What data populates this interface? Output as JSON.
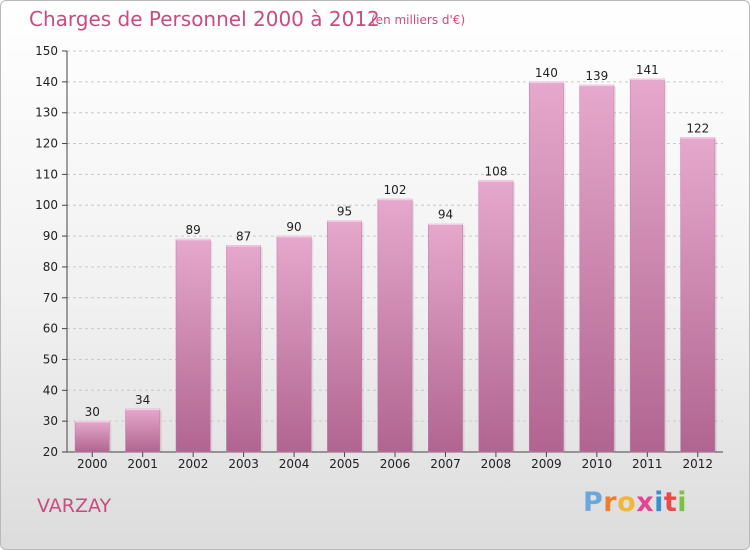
{
  "header": {
    "title": "Charges de Personnel 2000 à 2012",
    "subtitle": "(en milliers d'€)"
  },
  "footer": {
    "town": "VARZAY",
    "logo_letters": [
      "P",
      "r",
      "o",
      "x",
      "i",
      "t",
      "i"
    ],
    "logo_colors": [
      "#6aa8dc",
      "#ef7d2c",
      "#f0b73c",
      "#e84393",
      "#3a8fd0",
      "#e94a4a",
      "#7cc242"
    ]
  },
  "colors": {
    "bar": "#cc80ad",
    "bar_dark": "#b06590",
    "grid": "#c9c9c9",
    "axis": "#444444",
    "title": "#c94b7f"
  },
  "chart_data": {
    "type": "bar",
    "title": "Charges de Personnel 2000 à 2012",
    "subtitle": "(en milliers d'€)",
    "xlabel": "",
    "ylabel": "",
    "categories": [
      "2000",
      "2001",
      "2002",
      "2003",
      "2004",
      "2005",
      "2006",
      "2007",
      "2008",
      "2009",
      "2010",
      "2011",
      "2012"
    ],
    "values": [
      30,
      34,
      89,
      87,
      90,
      95,
      102,
      94,
      108,
      140,
      139,
      141,
      122
    ],
    "ylim": [
      20,
      150
    ],
    "yticks": [
      20,
      30,
      40,
      50,
      60,
      70,
      80,
      90,
      100,
      110,
      120,
      130,
      140,
      150
    ],
    "grid": true,
    "legend": "none"
  }
}
